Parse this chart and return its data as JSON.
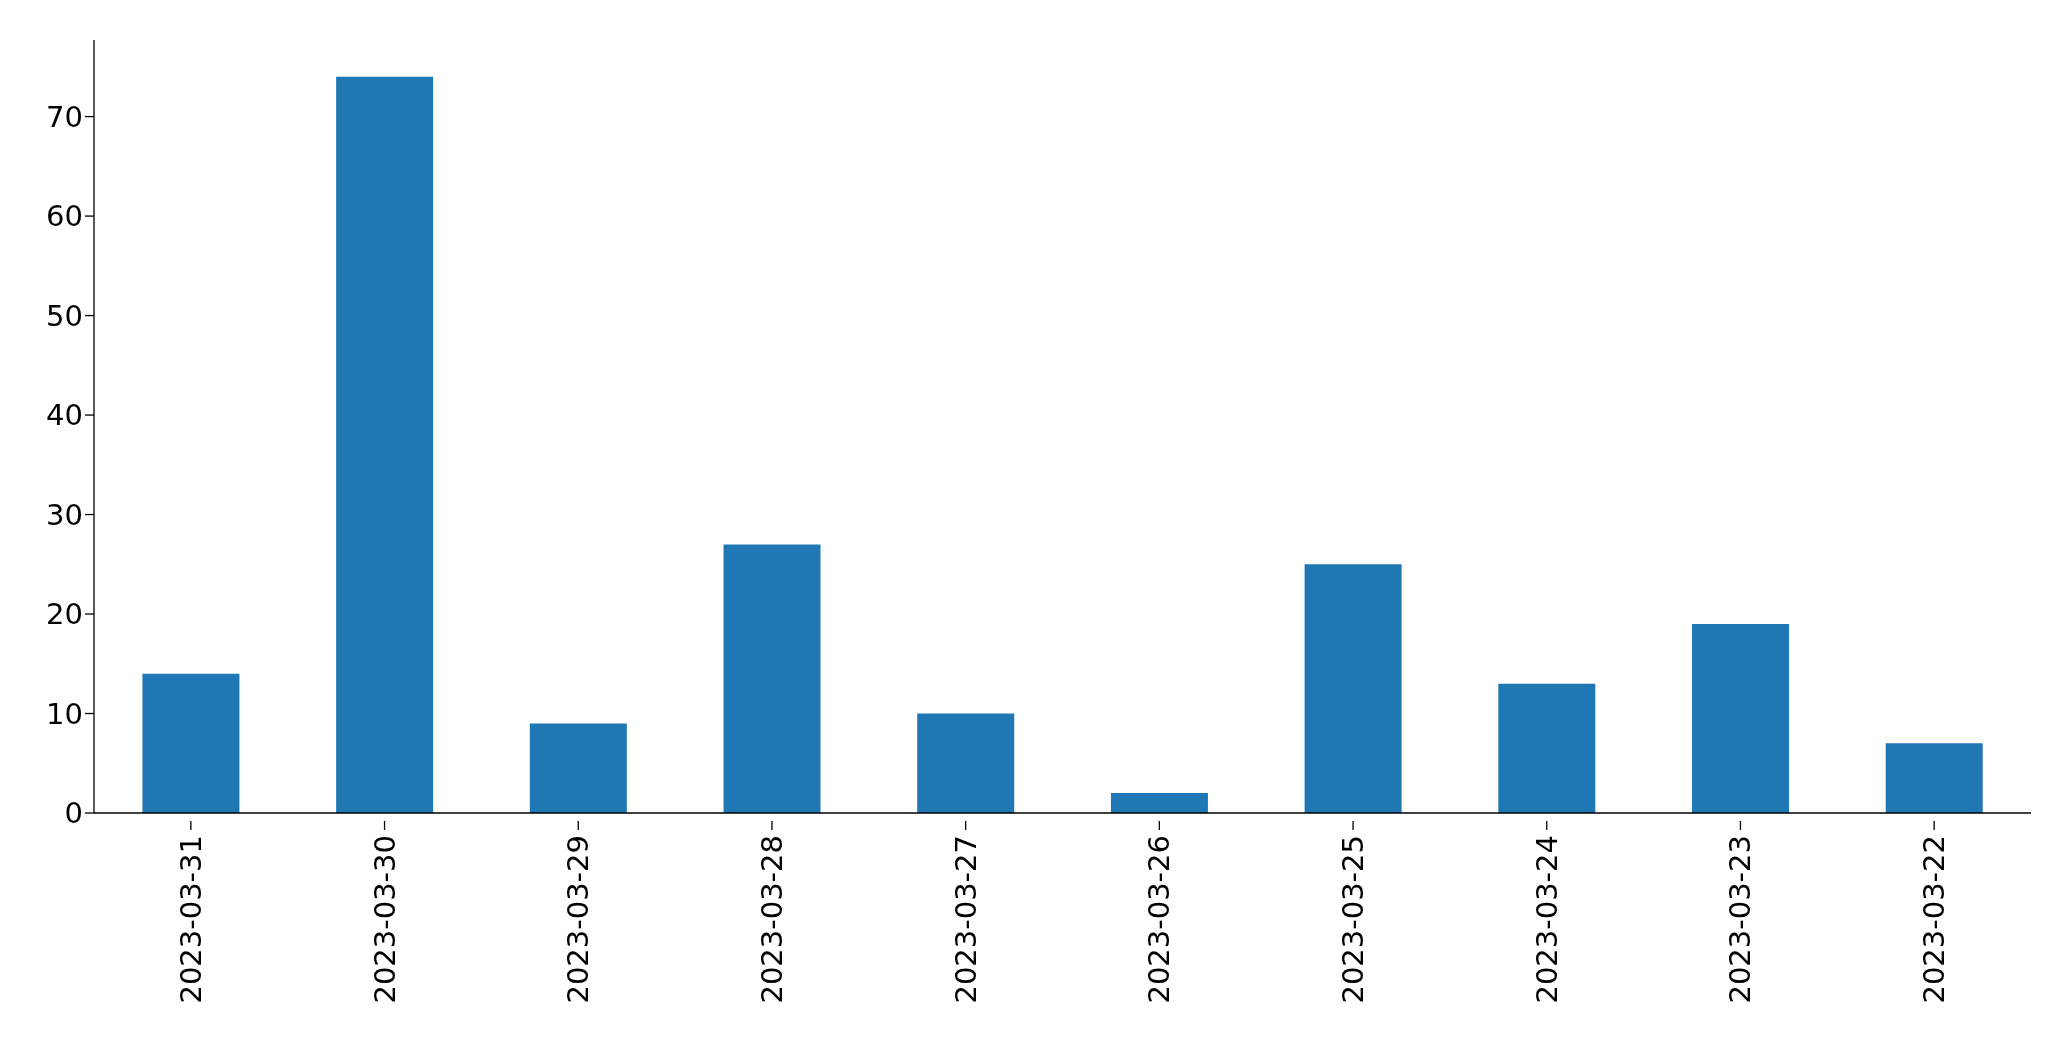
{
  "chart_data": {
    "type": "bar",
    "categories": [
      "2023-03-31",
      "2023-03-30",
      "2023-03-29",
      "2023-03-28",
      "2023-03-27",
      "2023-03-26",
      "2023-03-25",
      "2023-03-24",
      "2023-03-23",
      "2023-03-22"
    ],
    "values": [
      14,
      74,
      9,
      27,
      10,
      2,
      25,
      13,
      19,
      7
    ],
    "color": "#1f77b4",
    "ylim": [
      0,
      77.7
    ],
    "yticks": [
      0,
      10,
      20,
      30,
      40,
      50,
      60,
      70
    ],
    "grid": false,
    "legend": false
  }
}
